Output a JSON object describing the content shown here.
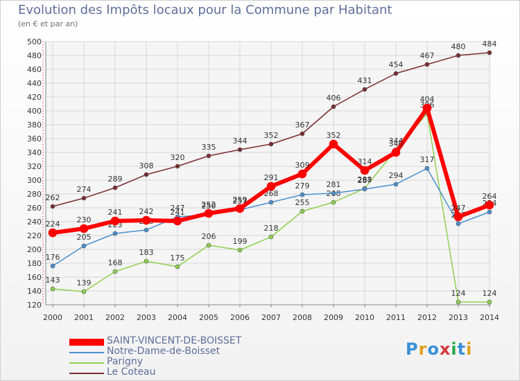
{
  "title": "Evolution des Impôts locaux pour la Commune par Habitant",
  "subtitle": "(en € et par an)",
  "logo": {
    "text": "Proxiti",
    "colors": [
      "#3a8fd8",
      "#e0a020",
      "#3a8fd8",
      "#d63a3a",
      "#2aa84a",
      "#3a8fd8",
      "#e0a020"
    ]
  },
  "chart_data": {
    "type": "line",
    "x": [
      "2000",
      "2001",
      "2002",
      "2003",
      "2004",
      "2005",
      "2006",
      "2007",
      "2008",
      "2009",
      "2010",
      "2011",
      "2012",
      "2013",
      "2014"
    ],
    "ylim": [
      120,
      500
    ],
    "yticks": [
      120,
      140,
      160,
      180,
      200,
      220,
      240,
      260,
      280,
      300,
      320,
      340,
      360,
      380,
      400,
      420,
      440,
      460,
      480,
      500
    ],
    "grid": true,
    "series": [
      {
        "name": "Le Coteau",
        "color": "#7a2c2c",
        "width": 1.5,
        "marker": 3,
        "values": [
          262,
          274,
          289,
          308,
          320,
          335,
          344,
          352,
          367,
          406,
          431,
          454,
          467,
          480,
          484
        ]
      },
      {
        "name": "Parigny",
        "color": "#8fd04f",
        "width": 1.5,
        "marker": 3,
        "values": [
          143,
          139,
          168,
          183,
          175,
          206,
          199,
          218,
          255,
          268,
          288,
          344,
          396,
          124,
          124
        ]
      },
      {
        "name": "Notre-Dame-de-Boisset",
        "color": "#4a8fcf",
        "width": 1.5,
        "marker": 3,
        "values": [
          176,
          205,
          223,
          228,
          247,
          250,
          257,
          268,
          279,
          281,
          287,
          294,
          317,
          237,
          254
        ]
      },
      {
        "name": "SAINT-VINCENT-DE-BOISSET",
        "color": "#ff0000",
        "width": 6,
        "marker": 6,
        "values": [
          224,
          230,
          241,
          242,
          241,
          252,
          259,
          291,
          309,
          352,
          314,
          340,
          404,
          247,
          264
        ]
      }
    ],
    "label_offsets_note": "labels shown above points",
    "legend": [
      "SAINT-VINCENT-DE-BOISSET",
      "Notre-Dame-de-Boisset",
      "Parigny",
      "Le Coteau"
    ]
  }
}
